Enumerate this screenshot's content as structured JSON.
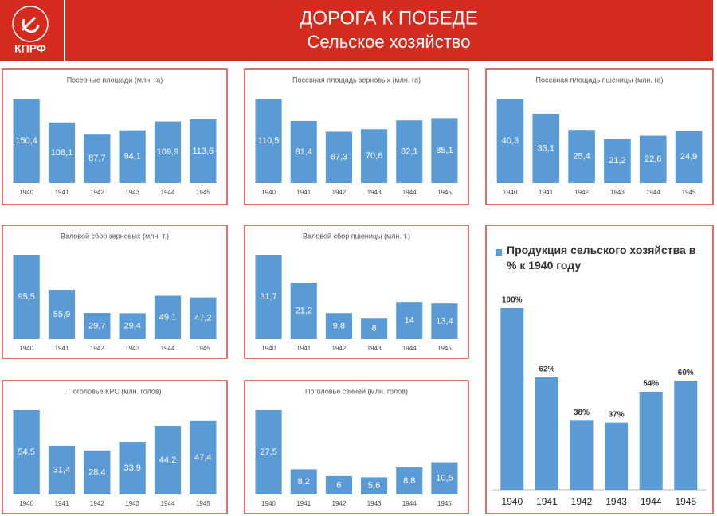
{
  "header": {
    "logo": "КПРФ",
    "title": "ДОРОГА К ПОБЕДЕ",
    "subtitle": "Сельское хозяйство"
  },
  "chart_data": [
    {
      "type": "bar",
      "title": "Посевные площади (млн. га)",
      "color": "#5b9bd5",
      "categories": [
        "1940",
        "1941",
        "1942",
        "1943",
        "1944",
        "1945"
      ],
      "values": [
        150.4,
        108.1,
        87.7,
        94.1,
        109.9,
        113.6
      ],
      "value_labels": [
        "150,4",
        "108,1",
        "87,7",
        "94,1",
        "109,9",
        "113,6"
      ]
    },
    {
      "type": "bar",
      "title": "Посевная площадь зерновых (млн. га)",
      "color": "#5b9bd5",
      "categories": [
        "1940",
        "1941",
        "1942",
        "1943",
        "1944",
        "1945"
      ],
      "values": [
        110.5,
        81.4,
        67.3,
        70.6,
        82.1,
        85.1
      ],
      "value_labels": [
        "110,5",
        "81,4",
        "67,3",
        "70,6",
        "82,1",
        "85,1"
      ]
    },
    {
      "type": "bar",
      "title": "Посевная площадь пшеницы (млн. га)",
      "color": "#5b9bd5",
      "categories": [
        "1940",
        "1941",
        "1942",
        "1943",
        "1944",
        "1945"
      ],
      "values": [
        40.3,
        33.1,
        25.4,
        21.2,
        22.6,
        24.9
      ],
      "value_labels": [
        "40,3",
        "33,1",
        "25,4",
        "21,2",
        "22,6",
        "24,9"
      ]
    },
    {
      "type": "bar",
      "title": "Валовой сбор зерновых (млн. т.)",
      "color": "#5b9bd5",
      "categories": [
        "1940",
        "1941",
        "1942",
        "1943",
        "1944",
        "1945"
      ],
      "values": [
        95.5,
        55.9,
        29.7,
        29.4,
        49.1,
        47.2
      ],
      "value_labels": [
        "95,5",
        "55,9",
        "29,7",
        "29,4",
        "49,1",
        "47,2"
      ]
    },
    {
      "type": "bar",
      "title": "Валовой сбор пшеницы (млн. т.)",
      "color": "#5b9bd5",
      "categories": [
        "1940",
        "1941",
        "1942",
        "1943",
        "1944",
        "1945"
      ],
      "values": [
        31.7,
        21.2,
        9.8,
        8,
        14,
        13.4
      ],
      "value_labels": [
        "31,7",
        "21,2",
        "9,8",
        "8",
        "14",
        "13,4"
      ]
    },
    {
      "type": "bar",
      "title": "Поголовье КРС (млн. голов)",
      "color": "#5b9bd5",
      "categories": [
        "1940",
        "1941",
        "1942",
        "1943",
        "1944",
        "1945"
      ],
      "values": [
        54.5,
        31.4,
        28.4,
        33.9,
        44.2,
        47.4
      ],
      "value_labels": [
        "54,5",
        "31,4",
        "28,4",
        "33,9",
        "44,2",
        "47,4"
      ]
    },
    {
      "type": "bar",
      "title": "Поголовье свиней (млн. голов)",
      "color": "#5b9bd5",
      "categories": [
        "1940",
        "1941",
        "1942",
        "1943",
        "1944",
        "1945"
      ],
      "values": [
        27.5,
        8.2,
        6,
        5.6,
        8.8,
        10.5
      ],
      "value_labels": [
        "27,5",
        "8,2",
        "6",
        "5,6",
        "8,8",
        "10,5"
      ]
    },
    {
      "type": "bar",
      "categories": [
        "1940",
        "1941",
        "1942",
        "1943",
        "1944",
        "1945"
      ],
      "series": [
        {
          "name": "Продукция сельского хозяйства в % к 1940 году",
          "color": "#5b9bd5",
          "values": [
            100,
            62,
            38,
            37,
            54,
            60
          ],
          "value_labels": [
            "100%",
            "62%",
            "38%",
            "37%",
            "54%",
            "60%"
          ]
        }
      ]
    }
  ]
}
